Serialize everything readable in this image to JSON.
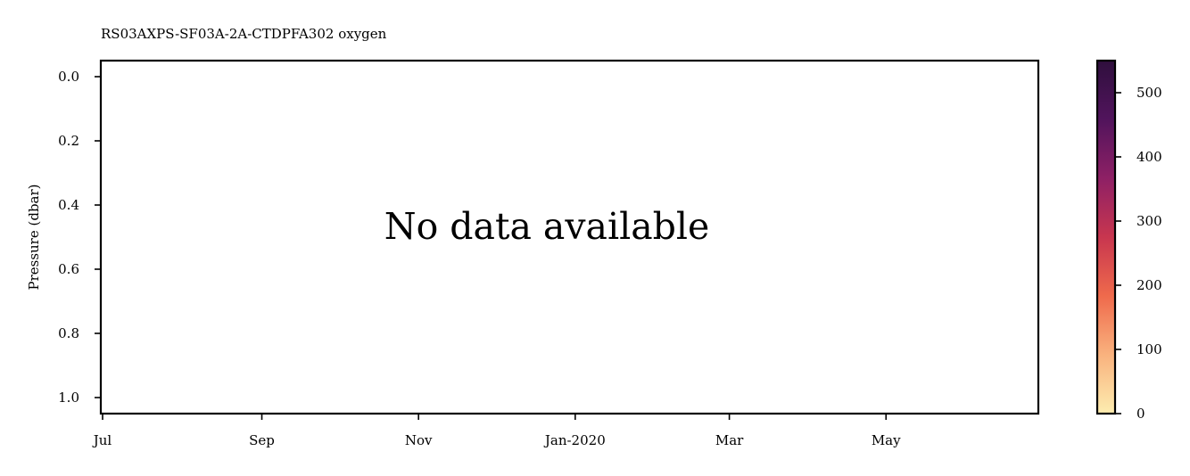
{
  "chart_data": {
    "type": "heatmap",
    "title": "RS03AXPS-SF03A-2A-CTDPFA302 oxygen",
    "message": "No data available",
    "xlabel": "",
    "ylabel": "Pressure (dbar)",
    "x_ticks": [
      "Jul",
      "Sep",
      "Nov",
      "Jan-2020",
      "Mar",
      "May"
    ],
    "x_range": [
      "2019-07-01",
      "2020-06-30"
    ],
    "y_ticks": [
      0.0,
      0.2,
      0.4,
      0.6,
      0.8,
      1.0
    ],
    "y_tick_labels": [
      "0.0",
      "0.2",
      "0.4",
      "0.6",
      "0.8",
      "1.0"
    ],
    "ylim": [
      1.05,
      -0.05
    ],
    "y_inverted": true,
    "colorbar": {
      "ticks": [
        0,
        100,
        200,
        300,
        400,
        500
      ],
      "tick_labels": [
        "0",
        "100",
        "200",
        "300",
        "400",
        "500"
      ],
      "range": [
        0,
        550
      ],
      "colormap": "matter",
      "colors": [
        "#fdedb0",
        "#f9b27e",
        "#ef6a4c",
        "#c8364f",
        "#8e2065",
        "#51145c",
        "#2f0f3d"
      ]
    },
    "values": []
  }
}
